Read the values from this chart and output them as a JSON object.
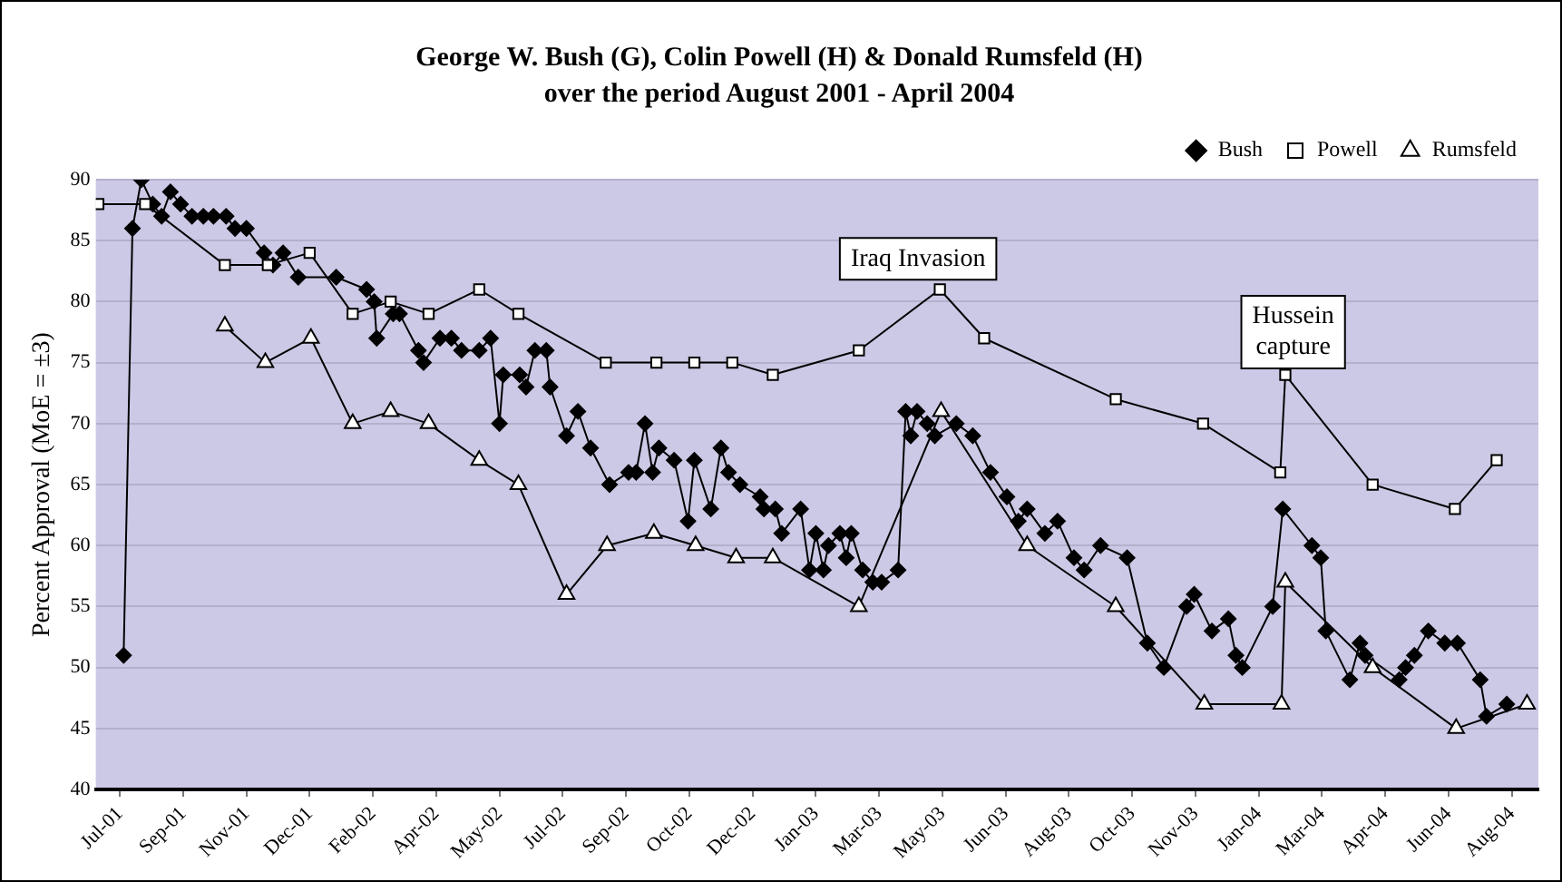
{
  "chart_data": {
    "type": "line",
    "title": "George W. Bush (G), Colin Powell (H) & Donald Rumsfeld (H)",
    "subtitle": "over the period August 2001 - April 2004",
    "ylabel": "Percent Approval (MoE = ±3)",
    "xlim": [
      "2001-07-11",
      "2004-08-24"
    ],
    "xticks": [
      {
        "value": "2001-07-30",
        "label": "Jul-01"
      },
      {
        "value": "2001-09-18",
        "label": "Sep-01"
      },
      {
        "value": "2001-11-07",
        "label": "Nov-01"
      },
      {
        "value": "2001-12-27",
        "label": "Dec-01"
      },
      {
        "value": "2002-02-15",
        "label": "Feb-02"
      },
      {
        "value": "2002-04-06",
        "label": "Apr-02"
      },
      {
        "value": "2002-05-26",
        "label": "May-02"
      },
      {
        "value": "2002-07-15",
        "label": "Jul-02"
      },
      {
        "value": "2002-09-03",
        "label": "Sep-02"
      },
      {
        "value": "2002-10-23",
        "label": "Oct-02"
      },
      {
        "value": "2002-12-12",
        "label": "Dec-02"
      },
      {
        "value": "2003-01-31",
        "label": "Jan-03"
      },
      {
        "value": "2003-03-22",
        "label": "Mar-03"
      },
      {
        "value": "2003-05-11",
        "label": "May-03"
      },
      {
        "value": "2003-06-30",
        "label": "Jun-03"
      },
      {
        "value": "2003-08-19",
        "label": "Aug-03"
      },
      {
        "value": "2003-10-08",
        "label": "Oct-03"
      },
      {
        "value": "2003-11-27",
        "label": "Nov-03"
      },
      {
        "value": "2004-01-16",
        "label": "Jan-04"
      },
      {
        "value": "2004-03-06",
        "label": "Mar-04"
      },
      {
        "value": "2004-04-25",
        "label": "Apr-04"
      },
      {
        "value": "2004-06-14",
        "label": "Jun-04"
      },
      {
        "value": "2004-08-03",
        "label": "Aug-04"
      }
    ],
    "ylim": [
      40,
      90
    ],
    "yticks": [
      40,
      45,
      50,
      55,
      60,
      65,
      70,
      75,
      80,
      85,
      90
    ],
    "grid": "y",
    "legend": "top right",
    "line_style": "solid",
    "series": [
      {
        "name": "Bush",
        "color": "#000000",
        "marker": "diamond",
        "x": [
          "2001-08-02",
          "2001-08-09",
          "2001-08-16",
          "2001-08-25",
          "2001-09-01",
          "2001-09-08",
          "2001-09-16",
          "2001-09-25",
          "2001-10-04",
          "2001-10-12",
          "2001-10-22",
          "2001-10-29",
          "2001-11-07",
          "2001-11-21",
          "2001-11-28",
          "2001-12-06",
          "2001-12-18",
          "2002-01-17",
          "2002-02-10",
          "2002-02-16",
          "2002-02-18",
          "2002-03-03",
          "2002-03-08",
          "2002-03-23",
          "2002-03-27",
          "2002-04-09",
          "2002-04-18",
          "2002-04-26",
          "2002-05-10",
          "2002-05-19",
          "2002-05-26",
          "2002-05-29",
          "2002-06-11",
          "2002-06-16",
          "2002-06-23",
          "2002-07-02",
          "2002-07-05",
          "2002-07-18",
          "2002-07-27",
          "2002-08-06",
          "2002-08-21",
          "2002-09-05",
          "2002-09-11",
          "2002-09-18",
          "2002-09-24",
          "2002-09-29",
          "2002-10-11",
          "2002-10-22",
          "2002-10-27",
          "2002-11-09",
          "2002-11-17",
          "2002-11-23",
          "2002-12-02",
          "2002-12-18",
          "2002-12-21",
          "2002-12-30",
          "2003-01-04",
          "2003-01-19",
          "2003-01-26",
          "2003-01-31",
          "2003-02-06",
          "2003-02-10",
          "2003-02-19",
          "2003-02-24",
          "2003-02-28",
          "2003-03-09",
          "2003-03-17",
          "2003-03-24",
          "2003-04-06",
          "2003-04-12",
          "2003-04-16",
          "2003-04-21",
          "2003-04-29",
          "2003-05-05",
          "2003-05-22",
          "2003-06-04",
          "2003-06-18",
          "2003-07-01",
          "2003-07-10",
          "2003-07-17",
          "2003-07-31",
          "2003-08-10",
          "2003-08-23",
          "2003-08-31",
          "2003-09-13",
          "2003-10-04",
          "2003-10-20",
          "2003-11-02",
          "2003-11-20",
          "2003-11-26",
          "2003-12-10",
          "2003-12-23",
          "2003-12-29",
          "2004-01-03",
          "2004-01-27",
          "2004-02-04",
          "2004-02-27",
          "2004-03-05",
          "2004-03-09",
          "2004-03-28",
          "2004-04-05",
          "2004-04-09",
          "2004-05-06",
          "2004-05-11",
          "2004-05-18",
          "2004-05-29",
          "2004-06-11",
          "2004-06-21",
          "2004-07-09",
          "2004-07-14",
          "2004-07-30"
        ],
        "values": [
          51,
          86,
          90,
          88,
          87,
          89,
          88,
          87,
          87,
          87,
          87,
          86,
          86,
          84,
          83,
          84,
          82,
          82,
          81,
          80,
          77,
          79,
          79,
          76,
          75,
          77,
          77,
          76,
          76,
          77,
          70,
          74,
          74,
          73,
          76,
          76,
          73,
          69,
          71,
          68,
          65,
          66,
          66,
          70,
          66,
          68,
          67,
          62,
          67,
          63,
          68,
          66,
          65,
          64,
          63,
          63,
          61,
          63,
          58,
          61,
          58,
          60,
          61,
          59,
          61,
          58,
          57,
          57,
          58,
          71,
          69,
          71,
          70,
          69,
          70,
          69,
          66,
          64,
          62,
          63,
          61,
          62,
          59,
          58,
          60,
          59,
          52,
          50,
          55,
          56,
          53,
          54,
          51,
          50,
          55,
          63,
          60,
          59,
          53,
          49,
          52,
          51,
          49,
          50,
          51,
          53,
          52,
          52,
          49,
          46,
          47
        ]
      },
      {
        "name": "Powell",
        "color": "#000000",
        "marker": "square",
        "x": [
          "2001-07-13",
          "2001-08-19",
          "2001-10-21",
          "2001-11-24",
          "2001-12-27",
          "2002-01-30",
          "2002-03-01",
          "2002-03-31",
          "2002-05-10",
          "2002-06-10",
          "2002-08-18",
          "2002-09-27",
          "2002-10-27",
          "2002-11-26",
          "2002-12-28",
          "2003-03-06",
          "2003-05-09",
          "2003-06-13",
          "2003-09-25",
          "2003-12-03",
          "2004-02-02",
          "2004-02-06",
          "2004-04-15",
          "2004-06-19",
          "2004-07-22"
        ],
        "values": [
          88,
          88,
          83,
          83,
          84,
          79,
          80,
          79,
          81,
          79,
          75,
          75,
          75,
          75,
          74,
          76,
          81,
          77,
          72,
          70,
          66,
          74,
          65,
          63,
          67
        ]
      },
      {
        "name": "Rumsfeld",
        "color": "#000000",
        "marker": "triangle",
        "x": [
          "2001-10-21",
          "2001-11-22",
          "2001-12-28",
          "2002-01-30",
          "2002-03-01",
          "2002-03-31",
          "2002-05-10",
          "2002-06-10",
          "2002-07-18",
          "2002-08-19",
          "2002-09-25",
          "2002-10-28",
          "2002-11-29",
          "2002-12-28",
          "2003-03-06",
          "2003-05-10",
          "2003-07-17",
          "2003-09-25",
          "2003-12-04",
          "2004-02-03",
          "2004-02-06",
          "2004-04-15",
          "2004-06-20",
          "2004-08-15"
        ],
        "values": [
          78,
          75,
          77,
          70,
          71,
          70,
          67,
          65,
          56,
          60,
          61,
          60,
          59,
          59,
          55,
          71,
          60,
          55,
          47,
          47,
          57,
          50,
          45,
          47
        ]
      }
    ],
    "annotations": [
      "Iraq Invasion",
      "Hussein capture"
    ]
  }
}
